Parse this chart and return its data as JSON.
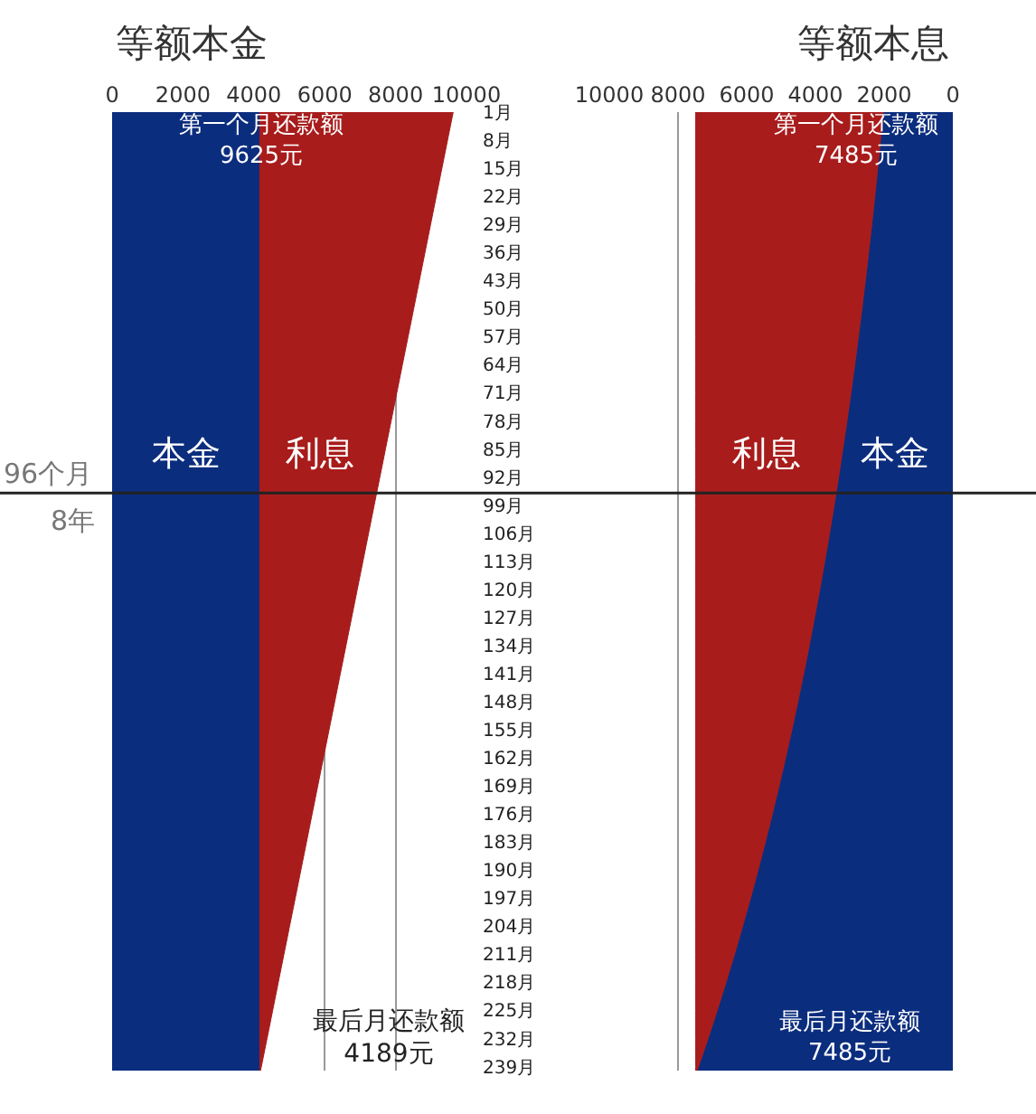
{
  "chart_data": [
    {
      "type": "area",
      "title": "等额本金",
      "orientation": "horizontal",
      "stacked": true,
      "x": [
        1,
        8,
        15,
        22,
        29,
        36,
        43,
        50,
        57,
        64,
        71,
        78,
        85,
        92,
        99,
        106,
        113,
        120,
        127,
        134,
        141,
        148,
        155,
        162,
        169,
        176,
        183,
        190,
        197,
        204,
        211,
        218,
        225,
        232,
        239,
        240
      ],
      "series": [
        {
          "name": "本金",
          "color": "#0b2d7e",
          "values": [
            4167,
            4167,
            4167,
            4167,
            4167,
            4167,
            4167,
            4167,
            4167,
            4167,
            4167,
            4167,
            4167,
            4167,
            4167,
            4167,
            4167,
            4167,
            4167,
            4167,
            4167,
            4167,
            4167,
            4167,
            4167,
            4167,
            4167,
            4167,
            4167,
            4167,
            4167,
            4167,
            4167,
            4167,
            4167,
            4167
          ]
        },
        {
          "name": "利息",
          "color": "#a81c1c",
          "values": [
            5458,
            5299,
            5140,
            4980,
            4821,
            4662,
            4503,
            4344,
            4185,
            4025,
            3866,
            3707,
            3548,
            3389,
            3229,
            3070,
            2911,
            2752,
            2593,
            2433,
            2274,
            2115,
            1956,
            1797,
            1637,
            1478,
            1319,
            1160,
            1001,
            841,
            682,
            523,
            364,
            205,
            45,
            22
          ]
        }
      ],
      "xlim": [
        0,
        10000
      ],
      "xticks": [
        0,
        2000,
        4000,
        6000,
        8000,
        10000
      ],
      "ylim": [
        240,
        1
      ],
      "yticks": [
        {
          "value": 1,
          "label": "1月"
        },
        {
          "value": 8,
          "label": "8月"
        },
        {
          "value": 15,
          "label": "15月"
        },
        {
          "value": 22,
          "label": "22月"
        },
        {
          "value": 29,
          "label": "29月"
        },
        {
          "value": 36,
          "label": "36月"
        },
        {
          "value": 43,
          "label": "43月"
        },
        {
          "value": 50,
          "label": "50月"
        },
        {
          "value": 57,
          "label": "57月"
        },
        {
          "value": 64,
          "label": "64月"
        },
        {
          "value": 71,
          "label": "71月"
        },
        {
          "value": 78,
          "label": "78月"
        },
        {
          "value": 85,
          "label": "85月"
        },
        {
          "value": 92,
          "label": "92月"
        },
        {
          "value": 99,
          "label": "99月"
        },
        {
          "value": 106,
          "label": "106月"
        },
        {
          "value": 113,
          "label": "113月"
        },
        {
          "value": 120,
          "label": "120月"
        },
        {
          "value": 127,
          "label": "127月"
        },
        {
          "value": 134,
          "label": "134月"
        },
        {
          "value": 141,
          "label": "141月"
        },
        {
          "value": 148,
          "label": "148月"
        },
        {
          "value": 155,
          "label": "155月"
        },
        {
          "value": 162,
          "label": "162月"
        },
        {
          "value": 169,
          "label": "169月"
        },
        {
          "value": 176,
          "label": "176月"
        },
        {
          "value": 183,
          "label": "183月"
        },
        {
          "value": 190,
          "label": "190月"
        },
        {
          "value": 197,
          "label": "197月"
        },
        {
          "value": 204,
          "label": "204月"
        },
        {
          "value": 211,
          "label": "211月"
        },
        {
          "value": 218,
          "label": "218月"
        },
        {
          "value": 225,
          "label": "225月"
        },
        {
          "value": 232,
          "label": "232月"
        },
        {
          "value": 239,
          "label": "239月"
        }
      ],
      "grid": "x",
      "ref_lines": [
        {
          "axis": "y",
          "value": 96,
          "label": "96个月",
          "color": "#222222"
        }
      ],
      "annotations": [
        "第一个月还款额\n9625元",
        "最后月还款额\n4189元",
        "8年"
      ]
    },
    {
      "type": "area",
      "title": "等额本息",
      "orientation": "horizontal",
      "stacked": true,
      "x": [
        1,
        8,
        15,
        22,
        29,
        36,
        43,
        50,
        57,
        64,
        71,
        78,
        85,
        92,
        99,
        106,
        113,
        120,
        127,
        134,
        141,
        148,
        155,
        162,
        169,
        176,
        183,
        190,
        197,
        204,
        211,
        218,
        225,
        232,
        239,
        240
      ],
      "series": [
        {
          "name": "本金",
          "color": "#0b2d7e",
          "values": [
            2027,
            2106,
            2187,
            2272,
            2360,
            2452,
            2547,
            2646,
            2749,
            2856,
            2967,
            3082,
            3202,
            3326,
            3455,
            3589,
            3729,
            3873,
            4024,
            4180,
            4342,
            4511,
            4686,
            4868,
            5057,
            5254,
            5458,
            5670,
            5890,
            6119,
            6357,
            6603,
            6860,
            7126,
            7403,
            7444
          ]
        },
        {
          "name": "利息",
          "color": "#a81c1c",
          "values": [
            5458,
            5379,
            5298,
            5213,
            5125,
            5033,
            4938,
            4839,
            4736,
            4629,
            4518,
            4403,
            4283,
            4159,
            4030,
            3896,
            3756,
            3612,
            3461,
            3305,
            3143,
            2974,
            2799,
            2617,
            2428,
            2231,
            2027,
            1815,
            1595,
            1366,
            1128,
            882,
            625,
            359,
            82,
            41
          ]
        }
      ],
      "xlim": [
        10000,
        0
      ],
      "xticks": [
        10000,
        8000,
        6000,
        4000,
        2000,
        0
      ],
      "ylim": [
        240,
        1
      ],
      "tick_labels": "x",
      "grid": "x",
      "ref_lines": [
        {
          "axis": "y",
          "value": 96,
          "color": "#222222"
        }
      ],
      "annotations": [
        "第一个月还款额\n7485元",
        "最后月还款额\n7485元"
      ]
    }
  ]
}
